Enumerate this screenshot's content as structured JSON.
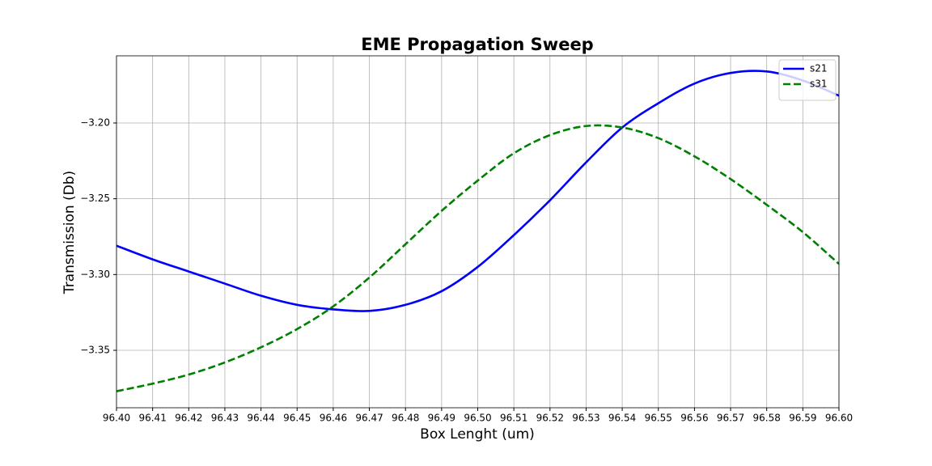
{
  "chart_data": {
    "type": "line",
    "title": "EME Propagation Sweep",
    "xlabel": "Box Lenght (um)",
    "ylabel": "Transmission (Db)",
    "x": [
      96.4,
      96.41,
      96.42,
      96.43,
      96.44,
      96.45,
      96.46,
      96.47,
      96.48,
      96.49,
      96.5,
      96.51,
      96.52,
      96.53,
      96.54,
      96.55,
      96.56,
      96.57,
      96.58,
      96.59,
      96.6
    ],
    "series": [
      {
        "name": "s21",
        "color": "#0000ff",
        "dash": false,
        "values": [
          -3.281,
          -3.29,
          -3.298,
          -3.306,
          -3.314,
          -3.32,
          -3.323,
          -3.324,
          -3.32,
          -3.311,
          -3.295,
          -3.274,
          -3.251,
          -3.226,
          -3.203,
          -3.187,
          -3.174,
          -3.167,
          -3.166,
          -3.172,
          -3.182
        ]
      },
      {
        "name": "s31",
        "color": "#008000",
        "dash": true,
        "values": [
          -3.377,
          -3.372,
          -3.366,
          -3.358,
          -3.348,
          -3.336,
          -3.321,
          -3.302,
          -3.28,
          -3.258,
          -3.238,
          -3.22,
          -3.208,
          -3.202,
          -3.203,
          -3.21,
          -3.222,
          -3.237,
          -3.254,
          -3.272,
          -3.293
        ]
      }
    ],
    "xlim": [
      96.4,
      96.6
    ],
    "ylim": [
      -3.3879,
      -3.1557
    ],
    "xticks": [
      {
        "value": 96.4,
        "label": "96.40"
      },
      96.41,
      96.42,
      96.43,
      96.44,
      96.45,
      96.46,
      96.47,
      96.48,
      96.49,
      {
        "value": 96.5,
        "label": "96.50"
      },
      96.51,
      96.52,
      96.53,
      96.54,
      96.55,
      96.56,
      96.57,
      96.58,
      96.59,
      {
        "value": 96.6,
        "label": "96.60"
      }
    ],
    "yticks": [
      {
        "value": -3.35,
        "label": "−3.35"
      },
      {
        "value": -3.3,
        "label": "−3.30"
      },
      {
        "value": -3.25,
        "label": "−3.25"
      },
      {
        "value": -3.2,
        "label": "−3.20"
      }
    ],
    "grid": true,
    "legend": "upper right"
  }
}
